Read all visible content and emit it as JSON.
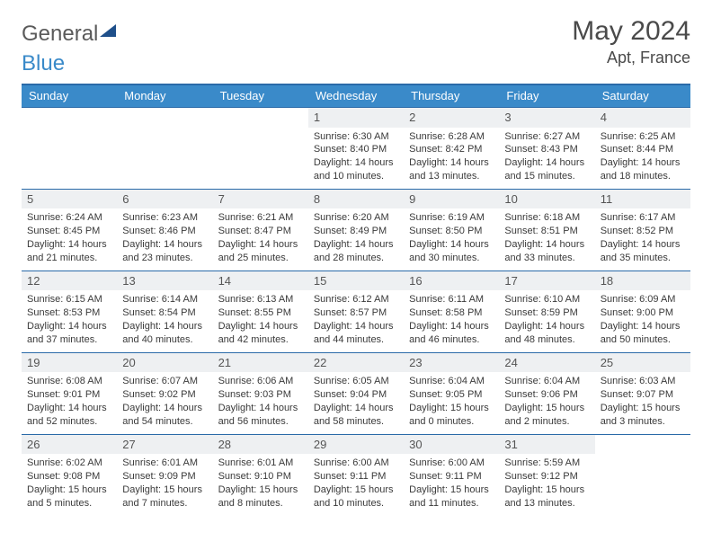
{
  "logo": {
    "word1": "General",
    "word2": "Blue"
  },
  "title": "May 2024",
  "location": "Apt, France",
  "header_bg": "#3a8ac9",
  "border_color": "#2a6aa8",
  "band_bg": "#eef0f2",
  "weekdays": [
    "Sunday",
    "Monday",
    "Tuesday",
    "Wednesday",
    "Thursday",
    "Friday",
    "Saturday"
  ],
  "weeks": [
    [
      {
        "n": "",
        "sr": "",
        "ss": "",
        "dl": ""
      },
      {
        "n": "",
        "sr": "",
        "ss": "",
        "dl": ""
      },
      {
        "n": "",
        "sr": "",
        "ss": "",
        "dl": ""
      },
      {
        "n": "1",
        "sr": "Sunrise: 6:30 AM",
        "ss": "Sunset: 8:40 PM",
        "dl": "Daylight: 14 hours and 10 minutes."
      },
      {
        "n": "2",
        "sr": "Sunrise: 6:28 AM",
        "ss": "Sunset: 8:42 PM",
        "dl": "Daylight: 14 hours and 13 minutes."
      },
      {
        "n": "3",
        "sr": "Sunrise: 6:27 AM",
        "ss": "Sunset: 8:43 PM",
        "dl": "Daylight: 14 hours and 15 minutes."
      },
      {
        "n": "4",
        "sr": "Sunrise: 6:25 AM",
        "ss": "Sunset: 8:44 PM",
        "dl": "Daylight: 14 hours and 18 minutes."
      }
    ],
    [
      {
        "n": "5",
        "sr": "Sunrise: 6:24 AM",
        "ss": "Sunset: 8:45 PM",
        "dl": "Daylight: 14 hours and 21 minutes."
      },
      {
        "n": "6",
        "sr": "Sunrise: 6:23 AM",
        "ss": "Sunset: 8:46 PM",
        "dl": "Daylight: 14 hours and 23 minutes."
      },
      {
        "n": "7",
        "sr": "Sunrise: 6:21 AM",
        "ss": "Sunset: 8:47 PM",
        "dl": "Daylight: 14 hours and 25 minutes."
      },
      {
        "n": "8",
        "sr": "Sunrise: 6:20 AM",
        "ss": "Sunset: 8:49 PM",
        "dl": "Daylight: 14 hours and 28 minutes."
      },
      {
        "n": "9",
        "sr": "Sunrise: 6:19 AM",
        "ss": "Sunset: 8:50 PM",
        "dl": "Daylight: 14 hours and 30 minutes."
      },
      {
        "n": "10",
        "sr": "Sunrise: 6:18 AM",
        "ss": "Sunset: 8:51 PM",
        "dl": "Daylight: 14 hours and 33 minutes."
      },
      {
        "n": "11",
        "sr": "Sunrise: 6:17 AM",
        "ss": "Sunset: 8:52 PM",
        "dl": "Daylight: 14 hours and 35 minutes."
      }
    ],
    [
      {
        "n": "12",
        "sr": "Sunrise: 6:15 AM",
        "ss": "Sunset: 8:53 PM",
        "dl": "Daylight: 14 hours and 37 minutes."
      },
      {
        "n": "13",
        "sr": "Sunrise: 6:14 AM",
        "ss": "Sunset: 8:54 PM",
        "dl": "Daylight: 14 hours and 40 minutes."
      },
      {
        "n": "14",
        "sr": "Sunrise: 6:13 AM",
        "ss": "Sunset: 8:55 PM",
        "dl": "Daylight: 14 hours and 42 minutes."
      },
      {
        "n": "15",
        "sr": "Sunrise: 6:12 AM",
        "ss": "Sunset: 8:57 PM",
        "dl": "Daylight: 14 hours and 44 minutes."
      },
      {
        "n": "16",
        "sr": "Sunrise: 6:11 AM",
        "ss": "Sunset: 8:58 PM",
        "dl": "Daylight: 14 hours and 46 minutes."
      },
      {
        "n": "17",
        "sr": "Sunrise: 6:10 AM",
        "ss": "Sunset: 8:59 PM",
        "dl": "Daylight: 14 hours and 48 minutes."
      },
      {
        "n": "18",
        "sr": "Sunrise: 6:09 AM",
        "ss": "Sunset: 9:00 PM",
        "dl": "Daylight: 14 hours and 50 minutes."
      }
    ],
    [
      {
        "n": "19",
        "sr": "Sunrise: 6:08 AM",
        "ss": "Sunset: 9:01 PM",
        "dl": "Daylight: 14 hours and 52 minutes."
      },
      {
        "n": "20",
        "sr": "Sunrise: 6:07 AM",
        "ss": "Sunset: 9:02 PM",
        "dl": "Daylight: 14 hours and 54 minutes."
      },
      {
        "n": "21",
        "sr": "Sunrise: 6:06 AM",
        "ss": "Sunset: 9:03 PM",
        "dl": "Daylight: 14 hours and 56 minutes."
      },
      {
        "n": "22",
        "sr": "Sunrise: 6:05 AM",
        "ss": "Sunset: 9:04 PM",
        "dl": "Daylight: 14 hours and 58 minutes."
      },
      {
        "n": "23",
        "sr": "Sunrise: 6:04 AM",
        "ss": "Sunset: 9:05 PM",
        "dl": "Daylight: 15 hours and 0 minutes."
      },
      {
        "n": "24",
        "sr": "Sunrise: 6:04 AM",
        "ss": "Sunset: 9:06 PM",
        "dl": "Daylight: 15 hours and 2 minutes."
      },
      {
        "n": "25",
        "sr": "Sunrise: 6:03 AM",
        "ss": "Sunset: 9:07 PM",
        "dl": "Daylight: 15 hours and 3 minutes."
      }
    ],
    [
      {
        "n": "26",
        "sr": "Sunrise: 6:02 AM",
        "ss": "Sunset: 9:08 PM",
        "dl": "Daylight: 15 hours and 5 minutes."
      },
      {
        "n": "27",
        "sr": "Sunrise: 6:01 AM",
        "ss": "Sunset: 9:09 PM",
        "dl": "Daylight: 15 hours and 7 minutes."
      },
      {
        "n": "28",
        "sr": "Sunrise: 6:01 AM",
        "ss": "Sunset: 9:10 PM",
        "dl": "Daylight: 15 hours and 8 minutes."
      },
      {
        "n": "29",
        "sr": "Sunrise: 6:00 AM",
        "ss": "Sunset: 9:11 PM",
        "dl": "Daylight: 15 hours and 10 minutes."
      },
      {
        "n": "30",
        "sr": "Sunrise: 6:00 AM",
        "ss": "Sunset: 9:11 PM",
        "dl": "Daylight: 15 hours and 11 minutes."
      },
      {
        "n": "31",
        "sr": "Sunrise: 5:59 AM",
        "ss": "Sunset: 9:12 PM",
        "dl": "Daylight: 15 hours and 13 minutes."
      },
      {
        "n": "",
        "sr": "",
        "ss": "",
        "dl": ""
      }
    ]
  ]
}
